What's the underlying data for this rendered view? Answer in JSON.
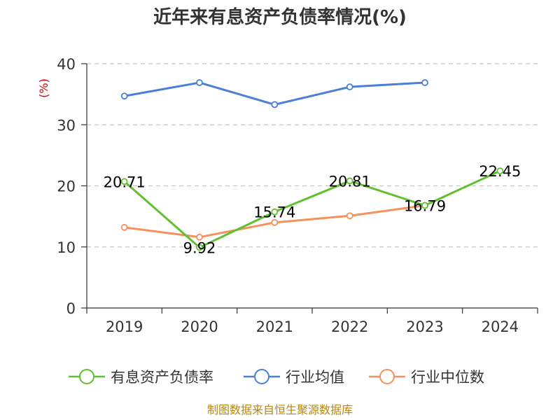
{
  "chart_data": {
    "type": "line",
    "title": "近年来有息资产负债率情况(%)",
    "ylabel": "(%)",
    "categories": [
      "2019",
      "2020",
      "2021",
      "2022",
      "2023",
      "2024"
    ],
    "ylim": [
      0,
      40
    ],
    "yticks": [
      0,
      10,
      20,
      30,
      40
    ],
    "grid": true,
    "legend_position": "bottom",
    "series": [
      {
        "name": "有息资产负债率",
        "color": "#5fc12f",
        "values": [
          20.71,
          9.92,
          15.74,
          20.81,
          16.79,
          22.45
        ],
        "labels": [
          "20.71",
          "9.92",
          "15.74",
          "20.81",
          "16.79",
          "22.45"
        ]
      },
      {
        "name": "行业均值",
        "color": "#4a7fd9",
        "values": [
          34.7,
          36.9,
          33.3,
          36.2,
          36.9,
          null
        ]
      },
      {
        "name": "行业中位数",
        "color": "#f5915a",
        "values": [
          13.2,
          11.6,
          14.0,
          15.1,
          16.79,
          null
        ]
      }
    ],
    "source": "制图数据来自恒生聚源数据库"
  }
}
